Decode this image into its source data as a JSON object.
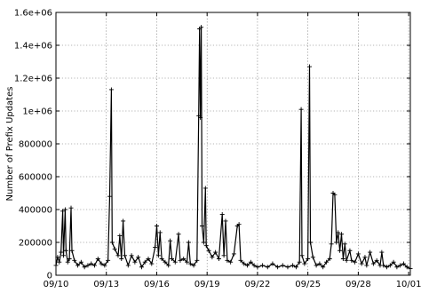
{
  "chart_data": {
    "type": "line",
    "title": "",
    "xlabel": "",
    "ylabel": "Number of Prefix Updates",
    "grid": true,
    "legend": "none",
    "xlim": [
      0,
      21.1
    ],
    "ylim": [
      0,
      1600000
    ],
    "x_ticks": [
      {
        "x": 0,
        "label": "09/10"
      },
      {
        "x": 3,
        "label": "09/13"
      },
      {
        "x": 6,
        "label": "09/16"
      },
      {
        "x": 9,
        "label": "09/19"
      },
      {
        "x": 12,
        "label": "09/22"
      },
      {
        "x": 15,
        "label": "09/25"
      },
      {
        "x": 18,
        "label": "09/28"
      },
      {
        "x": 21,
        "label": "10/01"
      }
    ],
    "y_ticks": [
      {
        "y": 0,
        "label": "0"
      },
      {
        "y": 200000,
        "label": "200000"
      },
      {
        "y": 400000,
        "label": "400000"
      },
      {
        "y": 600000,
        "label": "600000"
      },
      {
        "y": 800000,
        "label": "800000"
      },
      {
        "y": 1000000,
        "label": "1e+06"
      },
      {
        "y": 1200000,
        "label": "1.2e+06"
      },
      {
        "y": 1400000,
        "label": "1.4e+06"
      },
      {
        "y": 1600000,
        "label": "1.6e+06"
      }
    ],
    "series": [
      {
        "points": [
          [
            0.0,
            60000
          ],
          [
            0.1,
            110000
          ],
          [
            0.2,
            80000
          ],
          [
            0.3,
            140000
          ],
          [
            0.4,
            390000
          ],
          [
            0.45,
            120000
          ],
          [
            0.55,
            400000
          ],
          [
            0.6,
            150000
          ],
          [
            0.7,
            80000
          ],
          [
            0.8,
            100000
          ],
          [
            0.9,
            410000
          ],
          [
            0.95,
            150000
          ],
          [
            1.1,
            90000
          ],
          [
            1.3,
            60000
          ],
          [
            1.5,
            80000
          ],
          [
            1.7,
            50000
          ],
          [
            1.9,
            60000
          ],
          [
            2.1,
            70000
          ],
          [
            2.3,
            60000
          ],
          [
            2.5,
            100000
          ],
          [
            2.7,
            70000
          ],
          [
            2.9,
            60000
          ],
          [
            3.1,
            90000
          ],
          [
            3.2,
            480000
          ],
          [
            3.3,
            1130000
          ],
          [
            3.35,
            200000
          ],
          [
            3.5,
            160000
          ],
          [
            3.7,
            120000
          ],
          [
            3.8,
            240000
          ],
          [
            3.9,
            100000
          ],
          [
            4.0,
            330000
          ],
          [
            4.1,
            120000
          ],
          [
            4.3,
            60000
          ],
          [
            4.5,
            120000
          ],
          [
            4.7,
            80000
          ],
          [
            4.9,
            110000
          ],
          [
            5.1,
            50000
          ],
          [
            5.3,
            80000
          ],
          [
            5.5,
            100000
          ],
          [
            5.7,
            70000
          ],
          [
            5.9,
            170000
          ],
          [
            6.0,
            300000
          ],
          [
            6.1,
            120000
          ],
          [
            6.2,
            260000
          ],
          [
            6.3,
            100000
          ],
          [
            6.5,
            80000
          ],
          [
            6.7,
            60000
          ],
          [
            6.8,
            210000
          ],
          [
            6.9,
            100000
          ],
          [
            7.1,
            80000
          ],
          [
            7.3,
            250000
          ],
          [
            7.4,
            90000
          ],
          [
            7.6,
            100000
          ],
          [
            7.8,
            80000
          ],
          [
            7.9,
            200000
          ],
          [
            8.0,
            70000
          ],
          [
            8.2,
            60000
          ],
          [
            8.4,
            90000
          ],
          [
            8.5,
            970000
          ],
          [
            8.55,
            1500000
          ],
          [
            8.6,
            960000
          ],
          [
            8.65,
            1510000
          ],
          [
            8.7,
            300000
          ],
          [
            8.8,
            200000
          ],
          [
            8.9,
            530000
          ],
          [
            8.95,
            180000
          ],
          [
            9.1,
            150000
          ],
          [
            9.3,
            110000
          ],
          [
            9.5,
            140000
          ],
          [
            9.7,
            100000
          ],
          [
            9.9,
            370000
          ],
          [
            10.0,
            120000
          ],
          [
            10.1,
            330000
          ],
          [
            10.2,
            90000
          ],
          [
            10.4,
            80000
          ],
          [
            10.6,
            130000
          ],
          [
            10.8,
            300000
          ],
          [
            10.9,
            310000
          ],
          [
            11.0,
            90000
          ],
          [
            11.2,
            70000
          ],
          [
            11.4,
            60000
          ],
          [
            11.6,
            80000
          ],
          [
            11.8,
            60000
          ],
          [
            12.0,
            50000
          ],
          [
            12.3,
            60000
          ],
          [
            12.6,
            50000
          ],
          [
            12.9,
            70000
          ],
          [
            13.2,
            50000
          ],
          [
            13.5,
            60000
          ],
          [
            13.8,
            50000
          ],
          [
            14.1,
            60000
          ],
          [
            14.3,
            50000
          ],
          [
            14.5,
            80000
          ],
          [
            14.6,
            1010000
          ],
          [
            14.65,
            120000
          ],
          [
            14.8,
            70000
          ],
          [
            15.0,
            100000
          ],
          [
            15.1,
            1270000
          ],
          [
            15.15,
            200000
          ],
          [
            15.3,
            110000
          ],
          [
            15.5,
            60000
          ],
          [
            15.7,
            70000
          ],
          [
            15.9,
            50000
          ],
          [
            16.1,
            80000
          ],
          [
            16.3,
            100000
          ],
          [
            16.4,
            190000
          ],
          [
            16.5,
            500000
          ],
          [
            16.6,
            490000
          ],
          [
            16.7,
            200000
          ],
          [
            16.8,
            260000
          ],
          [
            16.9,
            150000
          ],
          [
            17.0,
            250000
          ],
          [
            17.1,
            100000
          ],
          [
            17.2,
            190000
          ],
          [
            17.3,
            90000
          ],
          [
            17.5,
            150000
          ],
          [
            17.6,
            90000
          ],
          [
            17.8,
            80000
          ],
          [
            18.0,
            130000
          ],
          [
            18.2,
            70000
          ],
          [
            18.4,
            110000
          ],
          [
            18.5,
            60000
          ],
          [
            18.7,
            140000
          ],
          [
            18.9,
            70000
          ],
          [
            19.1,
            90000
          ],
          [
            19.3,
            60000
          ],
          [
            19.4,
            140000
          ],
          [
            19.5,
            60000
          ],
          [
            19.7,
            50000
          ],
          [
            19.9,
            60000
          ],
          [
            20.1,
            80000
          ],
          [
            20.3,
            50000
          ],
          [
            20.5,
            60000
          ],
          [
            20.7,
            70000
          ],
          [
            20.9,
            50000
          ],
          [
            21.1,
            40000
          ]
        ]
      }
    ]
  }
}
